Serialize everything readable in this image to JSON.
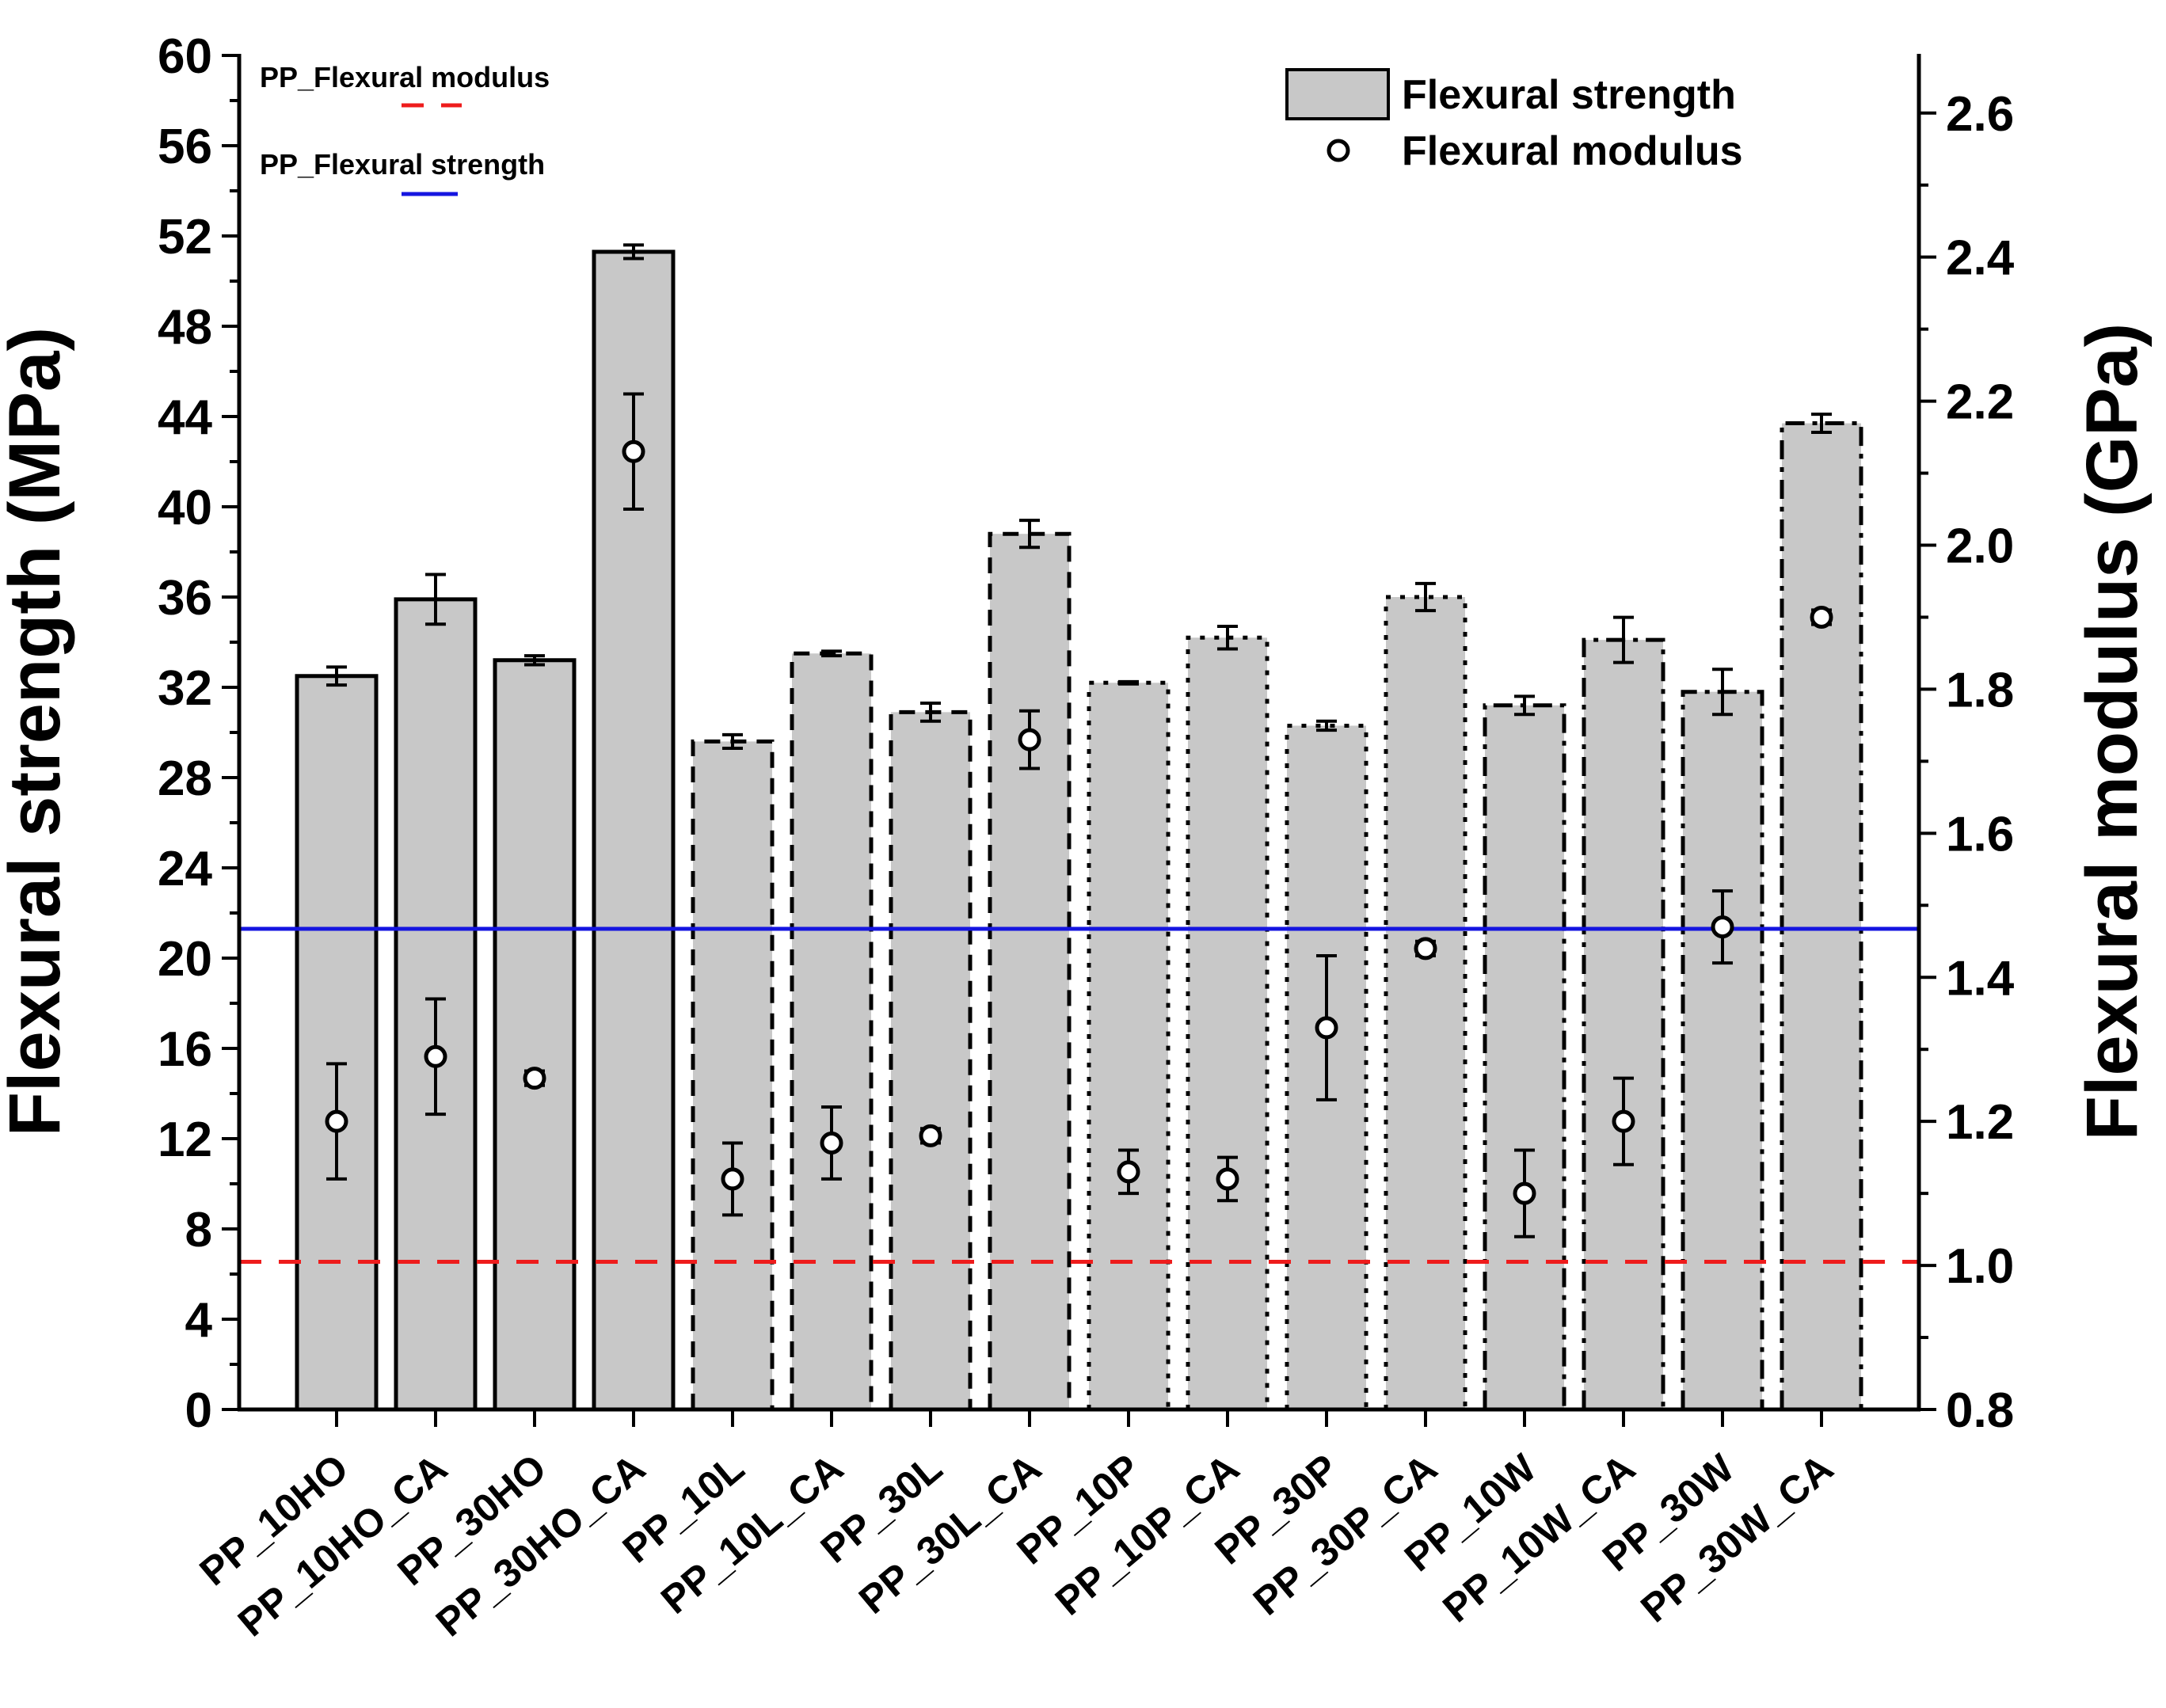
{
  "chart_data": {
    "type": "bar",
    "categories": [
      "PP_10HO",
      "PP_10HO_CA",
      "PP_30HO",
      "PP_30HO_CA",
      "PP_10L",
      "PP_10L_CA",
      "PP_30L",
      "PP_30L_CA",
      "PP_10P",
      "PP_10P_CA",
      "PP_30P",
      "PP_30P_CA",
      "PP_10W",
      "PP_10W_CA",
      "PP_30W",
      "PP_30W_CA"
    ],
    "series": [
      {
        "name": "Flexural strength",
        "axis": "left",
        "values": [
          32.5,
          35.9,
          33.2,
          51.3,
          29.6,
          33.5,
          30.9,
          38.8,
          32.2,
          34.2,
          30.3,
          36.0,
          31.2,
          34.1,
          31.8,
          43.7
        ],
        "errors": [
          0.4,
          1.1,
          0.2,
          0.3,
          0.3,
          0.1,
          0.4,
          0.6,
          0.05,
          0.5,
          0.2,
          0.6,
          0.4,
          1.0,
          1.0,
          0.4
        ]
      },
      {
        "name": "Flexural modulus",
        "axis": "right",
        "values": [
          1.2,
          1.29,
          1.26,
          2.13,
          1.12,
          1.17,
          1.18,
          1.73,
          1.13,
          1.12,
          1.33,
          1.44,
          1.1,
          1.2,
          1.47,
          1.9
        ],
        "errors": [
          0.08,
          0.08,
          0.01,
          0.08,
          0.05,
          0.05,
          0.01,
          0.04,
          0.03,
          0.03,
          0.1,
          0.01,
          0.06,
          0.06,
          0.05,
          0.01
        ]
      }
    ],
    "bar_border_styles": [
      "solid",
      "solid",
      "solid",
      "solid",
      "dash",
      "dash",
      "dash",
      "dash",
      "dot",
      "dot",
      "dot",
      "dot",
      "dashdot",
      "dashdot",
      "dashdot",
      "dashdot"
    ],
    "reference_lines": [
      {
        "label": "PP_Flexural strength",
        "axis": "left",
        "value": 21.3,
        "color": "#1515e0",
        "style": "solid"
      },
      {
        "label": "PP_Flexural modulus",
        "axis": "right",
        "value": 1.005,
        "color": "#ee1c1c",
        "style": "dashed"
      }
    ],
    "ylabel": "Flexural strength (MPa)",
    "ylabel_right": "Flexural modulus (GPa)",
    "ylim": [
      0,
      60
    ],
    "ylim_right": [
      0.8,
      2.68
    ],
    "yticks": [
      "0",
      "4",
      "8",
      "12",
      "16",
      "20",
      "24",
      "28",
      "32",
      "36",
      "40",
      "44",
      "48",
      "52",
      "56",
      "60"
    ],
    "yticks_right": [
      "0.8",
      "1.0",
      "1.2",
      "1.4",
      "1.6",
      "1.8",
      "2.0",
      "2.2",
      "2.4",
      "2.6"
    ],
    "legend": [
      {
        "label": "Flexural strength",
        "marker": "bar"
      },
      {
        "label": "Flexural modulus",
        "marker": "circle"
      }
    ],
    "legend_position": "top-right",
    "bar_color": "#c8c8c8",
    "grid": false
  }
}
